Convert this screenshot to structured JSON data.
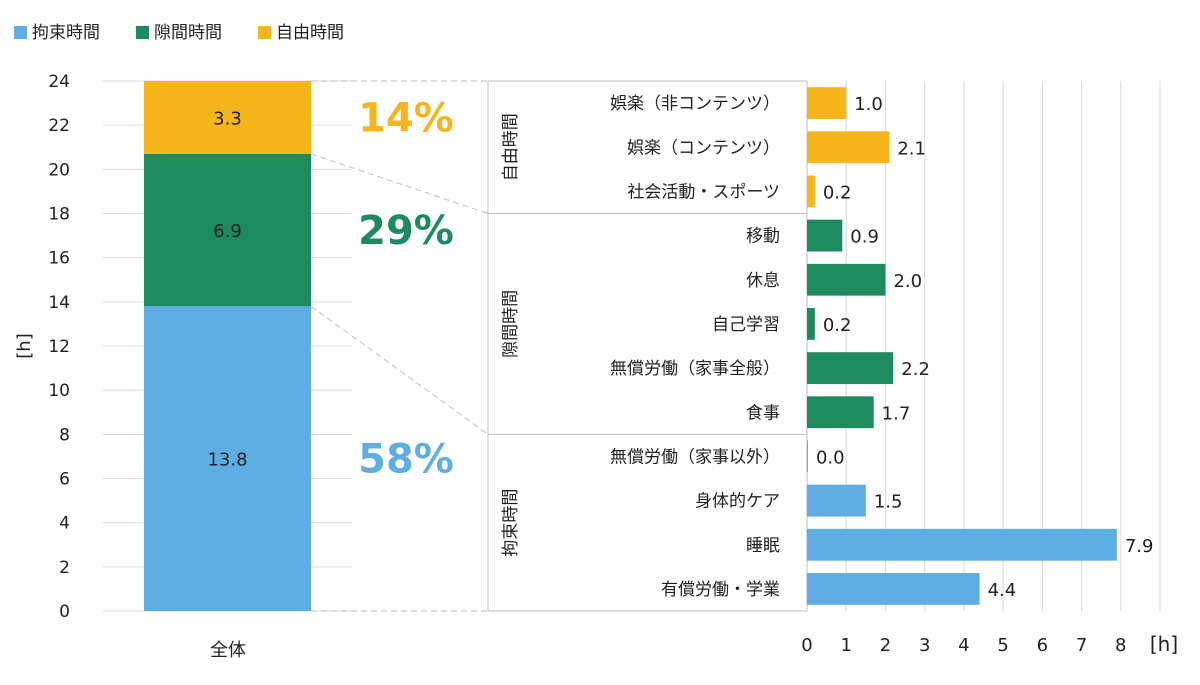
{
  "colors": {
    "constrained": "#5FAEE3",
    "gap": "#1E8A5F",
    "free": "#F5B51B",
    "grid": "#D9D9D9",
    "axis": "#BFBFBF",
    "text": "#222222"
  },
  "chart_data": [
    {
      "type": "bar",
      "stacked": true,
      "categories": [
        "全体"
      ],
      "series": [
        {
          "name": "拘束時間",
          "values": [
            13.8
          ],
          "color_key": "constrained",
          "share": "58%"
        },
        {
          "name": "隙間時間",
          "values": [
            6.9
          ],
          "color_key": "gap",
          "share": "29%"
        },
        {
          "name": "自由時間",
          "values": [
            3.3
          ],
          "color_key": "free",
          "share": "14%"
        }
      ],
      "ylabel": "[h]",
      "ylim": [
        0,
        24
      ],
      "yticks": [
        0,
        2,
        4,
        6,
        8,
        10,
        12,
        14,
        16,
        18,
        20,
        22,
        24
      ],
      "grid": true,
      "legend": "top-left"
    },
    {
      "type": "bar",
      "orientation": "horizontal",
      "groups": [
        {
          "name": "自由時間",
          "color_key": "free",
          "items": [
            {
              "label": "娯楽（非コンテンツ）",
              "value": 1.0
            },
            {
              "label": "娯楽（コンテンツ）",
              "value": 2.1
            },
            {
              "label": "社会活動・スポーツ",
              "value": 0.2
            }
          ]
        },
        {
          "name": "隙間時間",
          "color_key": "gap",
          "items": [
            {
              "label": "移動",
              "value": 0.9
            },
            {
              "label": "休息",
              "value": 2.0
            },
            {
              "label": "自己学習",
              "value": 0.2
            },
            {
              "label": "無償労働（家事全般）",
              "value": 2.2
            },
            {
              "label": "食事",
              "value": 1.7
            }
          ]
        },
        {
          "name": "拘束時間",
          "color_key": "constrained",
          "items": [
            {
              "label": "無償労働（家事以外）",
              "value": 0.0
            },
            {
              "label": "身体的ケア",
              "value": 1.5
            },
            {
              "label": "睡眠",
              "value": 7.9
            },
            {
              "label": "有償労働・学業",
              "value": 4.4
            }
          ]
        }
      ],
      "xlabel": "[h]",
      "xlim": [
        0,
        9
      ],
      "xticks": [
        0,
        1,
        2,
        3,
        4,
        5,
        6,
        7,
        8
      ],
      "grid": true
    }
  ]
}
